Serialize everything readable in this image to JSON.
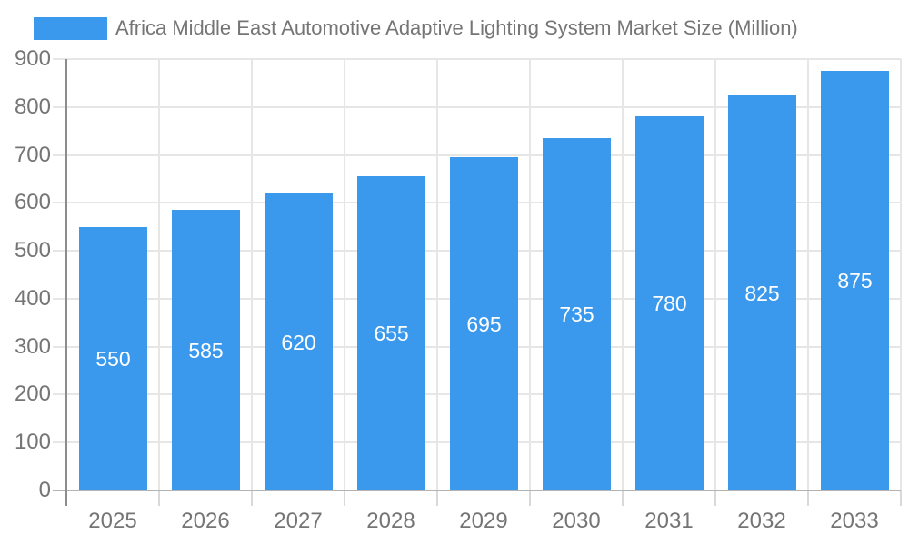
{
  "chart_data": {
    "type": "bar",
    "title": "Africa Middle East Automotive Adaptive Lighting System Market Size (Million)",
    "categories": [
      "2025",
      "2026",
      "2027",
      "2028",
      "2029",
      "2030",
      "2031",
      "2032",
      "2033"
    ],
    "values": [
      550,
      585,
      620,
      655,
      695,
      735,
      780,
      825,
      875
    ],
    "xlabel": "",
    "ylabel": "",
    "ylim": [
      0,
      900
    ],
    "yticks": [
      0,
      100,
      200,
      300,
      400,
      500,
      600,
      700,
      800,
      900
    ],
    "grid": true,
    "legend_position": "top-left",
    "value_labels_inside_bars": true,
    "colors": {
      "bar": "#3A99EC",
      "value_label": "#ffffff",
      "axis_label": "#757575",
      "gridline": "#e6e6e6",
      "y_axis_line": "#8c8c8c",
      "x_axis_line": "#b3b3b3",
      "tick": "#d9d9d9",
      "legend_text": "#757575",
      "background": "#ffffff"
    }
  }
}
